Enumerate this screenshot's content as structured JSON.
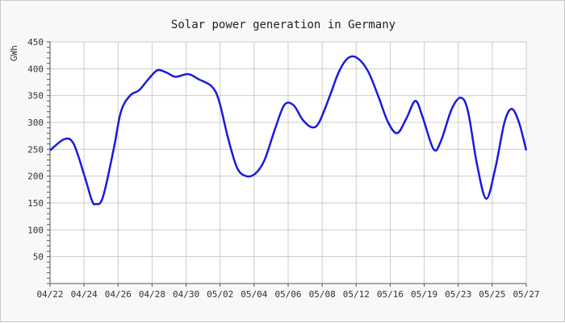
{
  "chart_data": {
    "type": "line",
    "title": "Solar power generation in Germany",
    "xlabel": "",
    "ylabel": "GWh",
    "ylim": [
      0,
      450
    ],
    "yticks": [
      50,
      100,
      150,
      200,
      250,
      300,
      350,
      400,
      450
    ],
    "xticks": [
      "04/22",
      "04/24",
      "04/26",
      "04/28",
      "04/30",
      "05/02",
      "05/04",
      "05/06",
      "05/08",
      "05/12",
      "05/16",
      "05/19",
      "05/23",
      "05/25",
      "05/27"
    ],
    "grid": true,
    "colors": {
      "line": "#1a1adf",
      "grid": "#cccccc",
      "axis": "#555555",
      "plot_bg": "#ffffff",
      "page_bg": "#f8f8f8"
    },
    "series": [
      {
        "values": [
          [
            0,
            248
          ],
          [
            0.8,
            269
          ],
          [
            1.3,
            260
          ],
          [
            1.9,
            200
          ],
          [
            2.3,
            155
          ],
          [
            2.5,
            148
          ],
          [
            2.9,
            160
          ],
          [
            3.5,
            250
          ],
          [
            3.9,
            320
          ],
          [
            4.4,
            350
          ],
          [
            4.9,
            360
          ],
          [
            5.4,
            380
          ],
          [
            5.9,
            397
          ],
          [
            6.4,
            393
          ],
          [
            6.9,
            385
          ],
          [
            7.6,
            390
          ],
          [
            8.2,
            380
          ],
          [
            8.9,
            367
          ],
          [
            9.3,
            340
          ],
          [
            9.8,
            270
          ],
          [
            10.3,
            215
          ],
          [
            10.8,
            200
          ],
          [
            11.3,
            205
          ],
          [
            11.8,
            230
          ],
          [
            12.4,
            290
          ],
          [
            12.9,
            333
          ],
          [
            13.4,
            332
          ],
          [
            13.9,
            305
          ],
          [
            14.4,
            291
          ],
          [
            14.8,
            300
          ],
          [
            15.4,
            350
          ],
          [
            15.9,
            395
          ],
          [
            16.4,
            420
          ],
          [
            16.9,
            420
          ],
          [
            17.5,
            395
          ],
          [
            18.1,
            345
          ],
          [
            18.6,
            300
          ],
          [
            19.1,
            280
          ],
          [
            19.6,
            307
          ],
          [
            20.1,
            340
          ],
          [
            20.5,
            310
          ],
          [
            21.1,
            250
          ],
          [
            21.5,
            265
          ],
          [
            22.1,
            325
          ],
          [
            22.6,
            346
          ],
          [
            23.0,
            320
          ],
          [
            23.5,
            220
          ],
          [
            24.0,
            158
          ],
          [
            24.5,
            215
          ],
          [
            25.0,
            300
          ],
          [
            25.4,
            325
          ],
          [
            25.8,
            300
          ],
          [
            26.2,
            248
          ]
        ]
      }
    ]
  }
}
